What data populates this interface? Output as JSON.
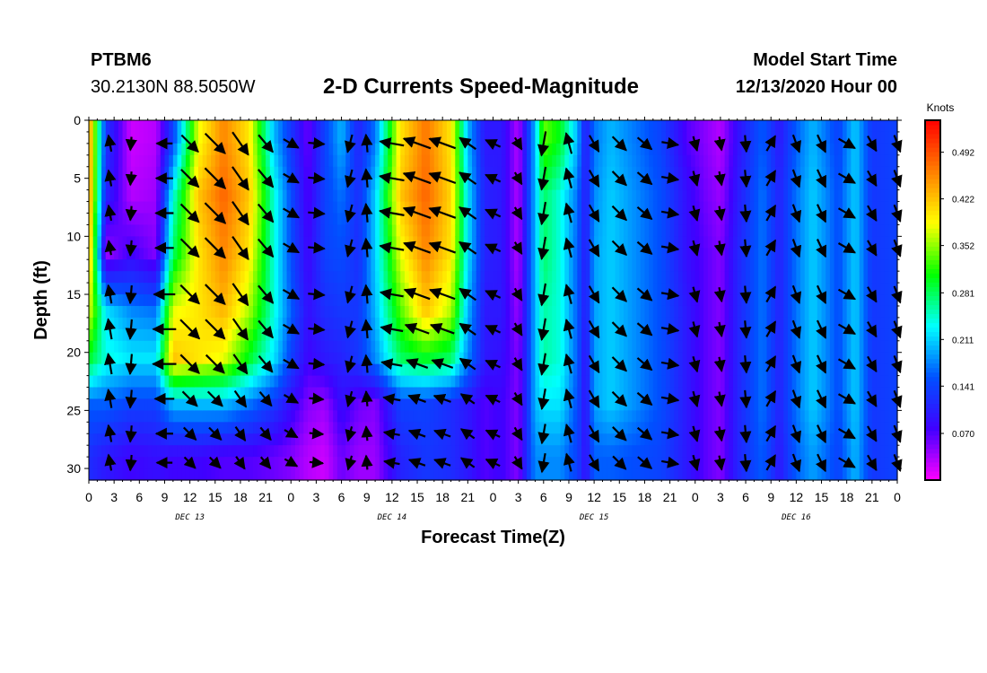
{
  "header": {
    "station": "PTBM6",
    "coordinates": "30.2130N 88.5050W",
    "title": "2-D Currents Speed-Magnitude",
    "model_start_label": "Model Start Time",
    "model_start_value": "12/13/2020 Hour 00"
  },
  "colors": {
    "arrow": "#000000",
    "scale": [
      "#ff00ff",
      "#4000ff",
      "#0050ff",
      "#00ffff",
      "#00ff00",
      "#ffff00",
      "#ff8000",
      "#ff0000"
    ]
  },
  "chart_data": {
    "type": "heatmap",
    "title": "2-D Currents Speed-Magnitude",
    "xlabel": "Forecast Time(Z)",
    "ylabel": "Depth (ft)",
    "xlim": [
      0,
      96
    ],
    "ylim": [
      0,
      31
    ],
    "y_inverted": true,
    "x_tick_values": [
      0,
      3,
      6,
      9,
      12,
      15,
      18,
      21,
      24,
      27,
      30,
      33,
      36,
      39,
      42,
      45,
      48,
      51,
      54,
      57,
      60,
      63,
      66,
      69,
      72,
      75,
      78,
      81,
      84,
      87,
      90,
      93,
      96
    ],
    "x_tick_labels": [
      "0",
      "3",
      "6",
      "9",
      "12",
      "15",
      "18",
      "21",
      "0",
      "3",
      "6",
      "9",
      "12",
      "15",
      "18",
      "21",
      "0",
      "3",
      "6",
      "9",
      "12",
      "15",
      "18",
      "21",
      "0",
      "3",
      "6",
      "9",
      "12",
      "15",
      "18",
      "21",
      "0"
    ],
    "y_ticks": [
      0,
      5,
      10,
      15,
      20,
      25,
      30
    ],
    "y_tick_labels": [
      "0",
      "5",
      "10",
      "15",
      "20",
      "25",
      "30"
    ],
    "day_labels": [
      {
        "label": "DEC 13",
        "hour": 12
      },
      {
        "label": "DEC 14",
        "hour": 36
      },
      {
        "label": "DEC 15",
        "hour": 60
      },
      {
        "label": "DEC 16",
        "hour": 84
      }
    ],
    "colorbar": {
      "unit": "Knots",
      "min": 0.0,
      "max": 0.54,
      "tick_values": [
        0.07,
        0.141,
        0.211,
        0.281,
        0.352,
        0.422,
        0.492
      ],
      "tick_labels": [
        "0.070",
        "0.141",
        "0.211",
        "0.281",
        "0.352",
        "0.422",
        "0.492"
      ]
    },
    "depths": [
      1.5,
      6.5,
      11.5,
      16.5,
      20.5,
      24.5,
      29.0
    ],
    "speed_profile_by_hour": [
      {
        "hour": 0,
        "speeds": [
          0.46,
          0.46,
          0.44,
          0.38,
          0.3,
          0.16,
          0.12
        ]
      },
      {
        "hour": 2,
        "speeds": [
          0.13,
          0.11,
          0.04,
          0.22,
          0.24,
          0.16,
          0.1
        ]
      },
      {
        "hour": 5,
        "speeds": [
          0.02,
          0.03,
          0.08,
          0.18,
          0.22,
          0.14,
          0.08
        ]
      },
      {
        "hour": 8,
        "speeds": [
          0.03,
          0.04,
          0.05,
          0.17,
          0.22,
          0.14,
          0.09
        ]
      },
      {
        "hour": 10,
        "speeds": [
          0.14,
          0.24,
          0.28,
          0.38,
          0.42,
          0.2,
          0.08
        ]
      },
      {
        "hour": 13,
        "speeds": [
          0.38,
          0.42,
          0.4,
          0.4,
          0.4,
          0.2,
          0.08
        ]
      },
      {
        "hour": 16,
        "speeds": [
          0.46,
          0.48,
          0.46,
          0.43,
          0.38,
          0.2,
          0.07
        ]
      },
      {
        "hour": 19,
        "speeds": [
          0.4,
          0.42,
          0.4,
          0.36,
          0.3,
          0.17,
          0.07
        ]
      },
      {
        "hour": 22,
        "speeds": [
          0.2,
          0.24,
          0.24,
          0.24,
          0.22,
          0.13,
          0.06
        ]
      },
      {
        "hour": 24,
        "speeds": [
          0.13,
          0.15,
          0.15,
          0.16,
          0.14,
          0.09,
          0.05
        ]
      },
      {
        "hour": 26,
        "speeds": [
          0.06,
          0.07,
          0.08,
          0.09,
          0.08,
          0.05,
          0.03
        ]
      },
      {
        "hour": 28,
        "speeds": [
          0.14,
          0.14,
          0.14,
          0.12,
          0.1,
          0.04,
          0.02
        ]
      },
      {
        "hour": 30,
        "speeds": [
          0.2,
          0.17,
          0.15,
          0.13,
          0.11,
          0.09,
          0.06
        ]
      },
      {
        "hour": 32,
        "speeds": [
          0.11,
          0.12,
          0.12,
          0.13,
          0.13,
          0.06,
          0.04
        ]
      },
      {
        "hour": 34,
        "speeds": [
          0.17,
          0.21,
          0.21,
          0.2,
          0.18,
          0.05,
          0.04
        ]
      },
      {
        "hour": 37,
        "speeds": [
          0.4,
          0.42,
          0.38,
          0.33,
          0.28,
          0.14,
          0.11
        ]
      },
      {
        "hour": 40,
        "speeds": [
          0.47,
          0.48,
          0.46,
          0.42,
          0.3,
          0.14,
          0.13
        ]
      },
      {
        "hour": 43,
        "speeds": [
          0.4,
          0.41,
          0.4,
          0.36,
          0.28,
          0.12,
          0.12
        ]
      },
      {
        "hour": 45,
        "speeds": [
          0.2,
          0.22,
          0.22,
          0.2,
          0.18,
          0.1,
          0.1
        ]
      },
      {
        "hour": 47,
        "speeds": [
          0.1,
          0.11,
          0.11,
          0.1,
          0.1,
          0.07,
          0.07
        ]
      },
      {
        "hour": 49,
        "speeds": [
          0.1,
          0.1,
          0.1,
          0.1,
          0.09,
          0.08,
          0.08
        ]
      },
      {
        "hour": 51,
        "speeds": [
          0.03,
          0.03,
          0.03,
          0.04,
          0.05,
          0.05,
          0.05
        ]
      },
      {
        "hour": 52,
        "speeds": [
          0.12,
          0.12,
          0.12,
          0.12,
          0.12,
          0.12,
          0.12
        ]
      },
      {
        "hour": 53,
        "speeds": [
          0.2,
          0.2,
          0.2,
          0.2,
          0.2,
          0.2,
          0.18
        ]
      },
      {
        "hour": 54,
        "speeds": [
          0.34,
          0.28,
          0.28,
          0.26,
          0.26,
          0.22,
          0.18
        ]
      },
      {
        "hour": 56,
        "speeds": [
          0.3,
          0.24,
          0.24,
          0.24,
          0.24,
          0.22,
          0.18
        ]
      },
      {
        "hour": 58,
        "speeds": [
          0.2,
          0.17,
          0.16,
          0.16,
          0.16,
          0.15,
          0.14
        ]
      },
      {
        "hour": 59,
        "speeds": [
          0.1,
          0.1,
          0.1,
          0.1,
          0.09,
          0.09,
          0.09
        ]
      },
      {
        "hour": 60,
        "speeds": [
          0.17,
          0.18,
          0.19,
          0.19,
          0.19,
          0.19,
          0.16
        ]
      },
      {
        "hour": 62,
        "speeds": [
          0.2,
          0.21,
          0.21,
          0.21,
          0.21,
          0.21,
          0.16
        ]
      },
      {
        "hour": 65,
        "speeds": [
          0.17,
          0.18,
          0.18,
          0.18,
          0.18,
          0.18,
          0.15
        ]
      },
      {
        "hour": 68,
        "speeds": [
          0.14,
          0.15,
          0.15,
          0.15,
          0.15,
          0.15,
          0.14
        ]
      },
      {
        "hour": 71,
        "speeds": [
          0.07,
          0.09,
          0.09,
          0.1,
          0.1,
          0.1,
          0.1
        ]
      },
      {
        "hour": 73,
        "speeds": [
          0.05,
          0.06,
          0.07,
          0.07,
          0.07,
          0.07,
          0.07
        ]
      },
      {
        "hour": 75,
        "speeds": [
          0.03,
          0.04,
          0.05,
          0.05,
          0.05,
          0.05,
          0.05
        ]
      },
      {
        "hour": 77,
        "speeds": [
          0.09,
          0.1,
          0.11,
          0.11,
          0.11,
          0.11,
          0.11
        ]
      },
      {
        "hour": 80,
        "speeds": [
          0.16,
          0.17,
          0.17,
          0.17,
          0.17,
          0.17,
          0.16
        ]
      },
      {
        "hour": 82,
        "speeds": [
          0.1,
          0.11,
          0.11,
          0.11,
          0.11,
          0.11,
          0.1
        ]
      },
      {
        "hour": 84,
        "speeds": [
          0.16,
          0.17,
          0.17,
          0.17,
          0.17,
          0.17,
          0.16
        ]
      },
      {
        "hour": 86,
        "speeds": [
          0.2,
          0.21,
          0.21,
          0.21,
          0.21,
          0.21,
          0.19
        ]
      },
      {
        "hour": 89,
        "speeds": [
          0.14,
          0.15,
          0.15,
          0.15,
          0.15,
          0.15,
          0.14
        ]
      },
      {
        "hour": 91,
        "speeds": [
          0.21,
          0.21,
          0.21,
          0.21,
          0.21,
          0.21,
          0.2
        ]
      },
      {
        "hour": 93,
        "speeds": [
          0.13,
          0.13,
          0.13,
          0.13,
          0.13,
          0.13,
          0.13
        ]
      },
      {
        "hour": 96,
        "speeds": [
          0.14,
          0.14,
          0.14,
          0.14,
          0.14,
          0.14,
          0.14
        ]
      }
    ],
    "vector_times": [
      2.5,
      5,
      9,
      12,
      15,
      18,
      21,
      24,
      27,
      31,
      33,
      36,
      39,
      42,
      45,
      48,
      51,
      54,
      57,
      60,
      63,
      66,
      69,
      72,
      75,
      78,
      81,
      84,
      87,
      90,
      93,
      96
    ],
    "vector_depths": [
      2,
      5,
      8,
      11,
      15,
      18,
      21,
      24,
      27,
      29.5
    ],
    "vector_direction_deg_by_time": [
      350,
      185,
      270,
      135,
      135,
      145,
      140,
      120,
      95,
      195,
      355,
      280,
      290,
      290,
      305,
      295,
      150,
      190,
      345,
      150,
      135,
      130,
      100,
      165,
      170,
      175,
      30,
      160,
      155,
      120,
      150,
      160
    ],
    "vector_note": "Direction toward which current flows, degrees clockwise from north; arrow length proportional to speed"
  }
}
